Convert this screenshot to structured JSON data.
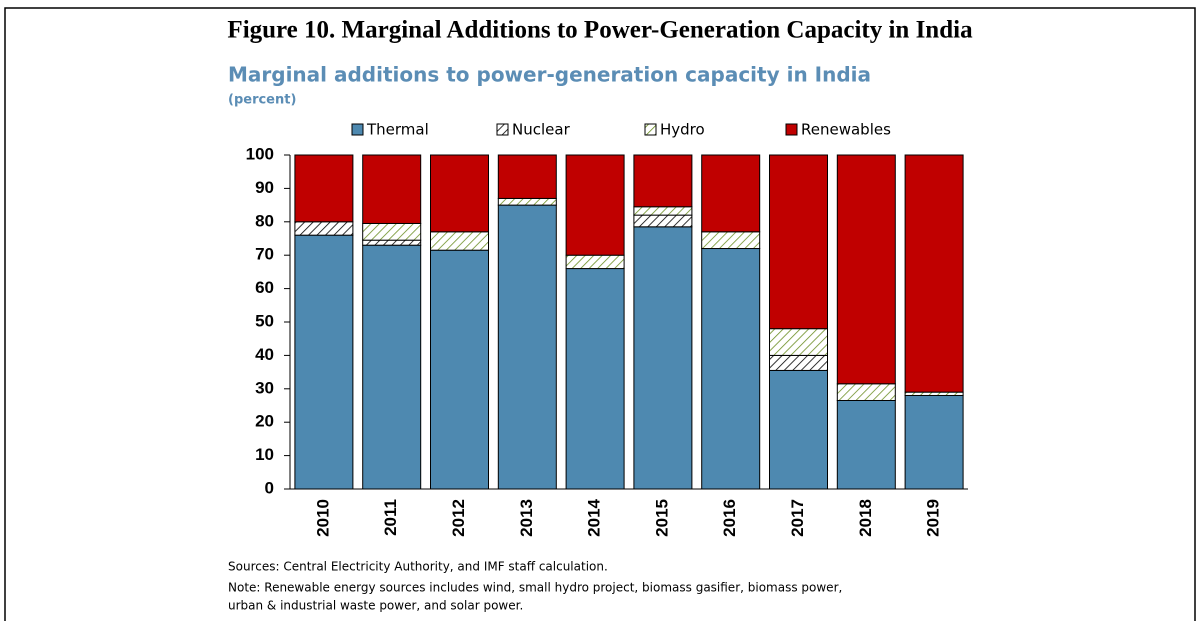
{
  "chart_data": {
    "type": "stacked_bar",
    "figure_title": "Figure 10. Marginal Additions to Power-Generation Capacity in India",
    "title": "Marginal additions to power-generation capacity in India",
    "subtitle": "(percent)",
    "categories": [
      "2010",
      "2011",
      "2012",
      "2013",
      "2014",
      "2015",
      "2016",
      "2017",
      "2018",
      "2019"
    ],
    "series": [
      {
        "name": "Thermal",
        "color": "#4e89b0",
        "hatched": false,
        "values": [
          76,
          73,
          71.5,
          85,
          66,
          78.5,
          72,
          35.5,
          26.5,
          28
        ]
      },
      {
        "name": "Nuclear",
        "color": "#000000",
        "hatched": true,
        "values": [
          4,
          1.5,
          0,
          0,
          0,
          3.5,
          0,
          4.5,
          0,
          0
        ]
      },
      {
        "name": "Hydro",
        "color": "#6b8e23",
        "hatched": true,
        "values": [
          0,
          5,
          5.5,
          2,
          4,
          2.5,
          5,
          8,
          5,
          1
        ]
      },
      {
        "name": "Renewables",
        "color": "#c00000",
        "hatched": false,
        "values": [
          20,
          20.5,
          23,
          13,
          30,
          15.5,
          23,
          52,
          68.5,
          71
        ]
      }
    ],
    "ylim": [
      0,
      100
    ],
    "yticks": [
      0,
      10,
      20,
      30,
      40,
      50,
      60,
      70,
      80,
      90,
      100
    ],
    "grid": false,
    "sources": "Sources: Central Electricity Authority, and IMF staff calculation.",
    "notes": [
      "Note: Renewable energy sources includes wind, small hydro project, biomass gasifier, biomass power,",
      "urban & industrial waste power, and solar power."
    ]
  }
}
